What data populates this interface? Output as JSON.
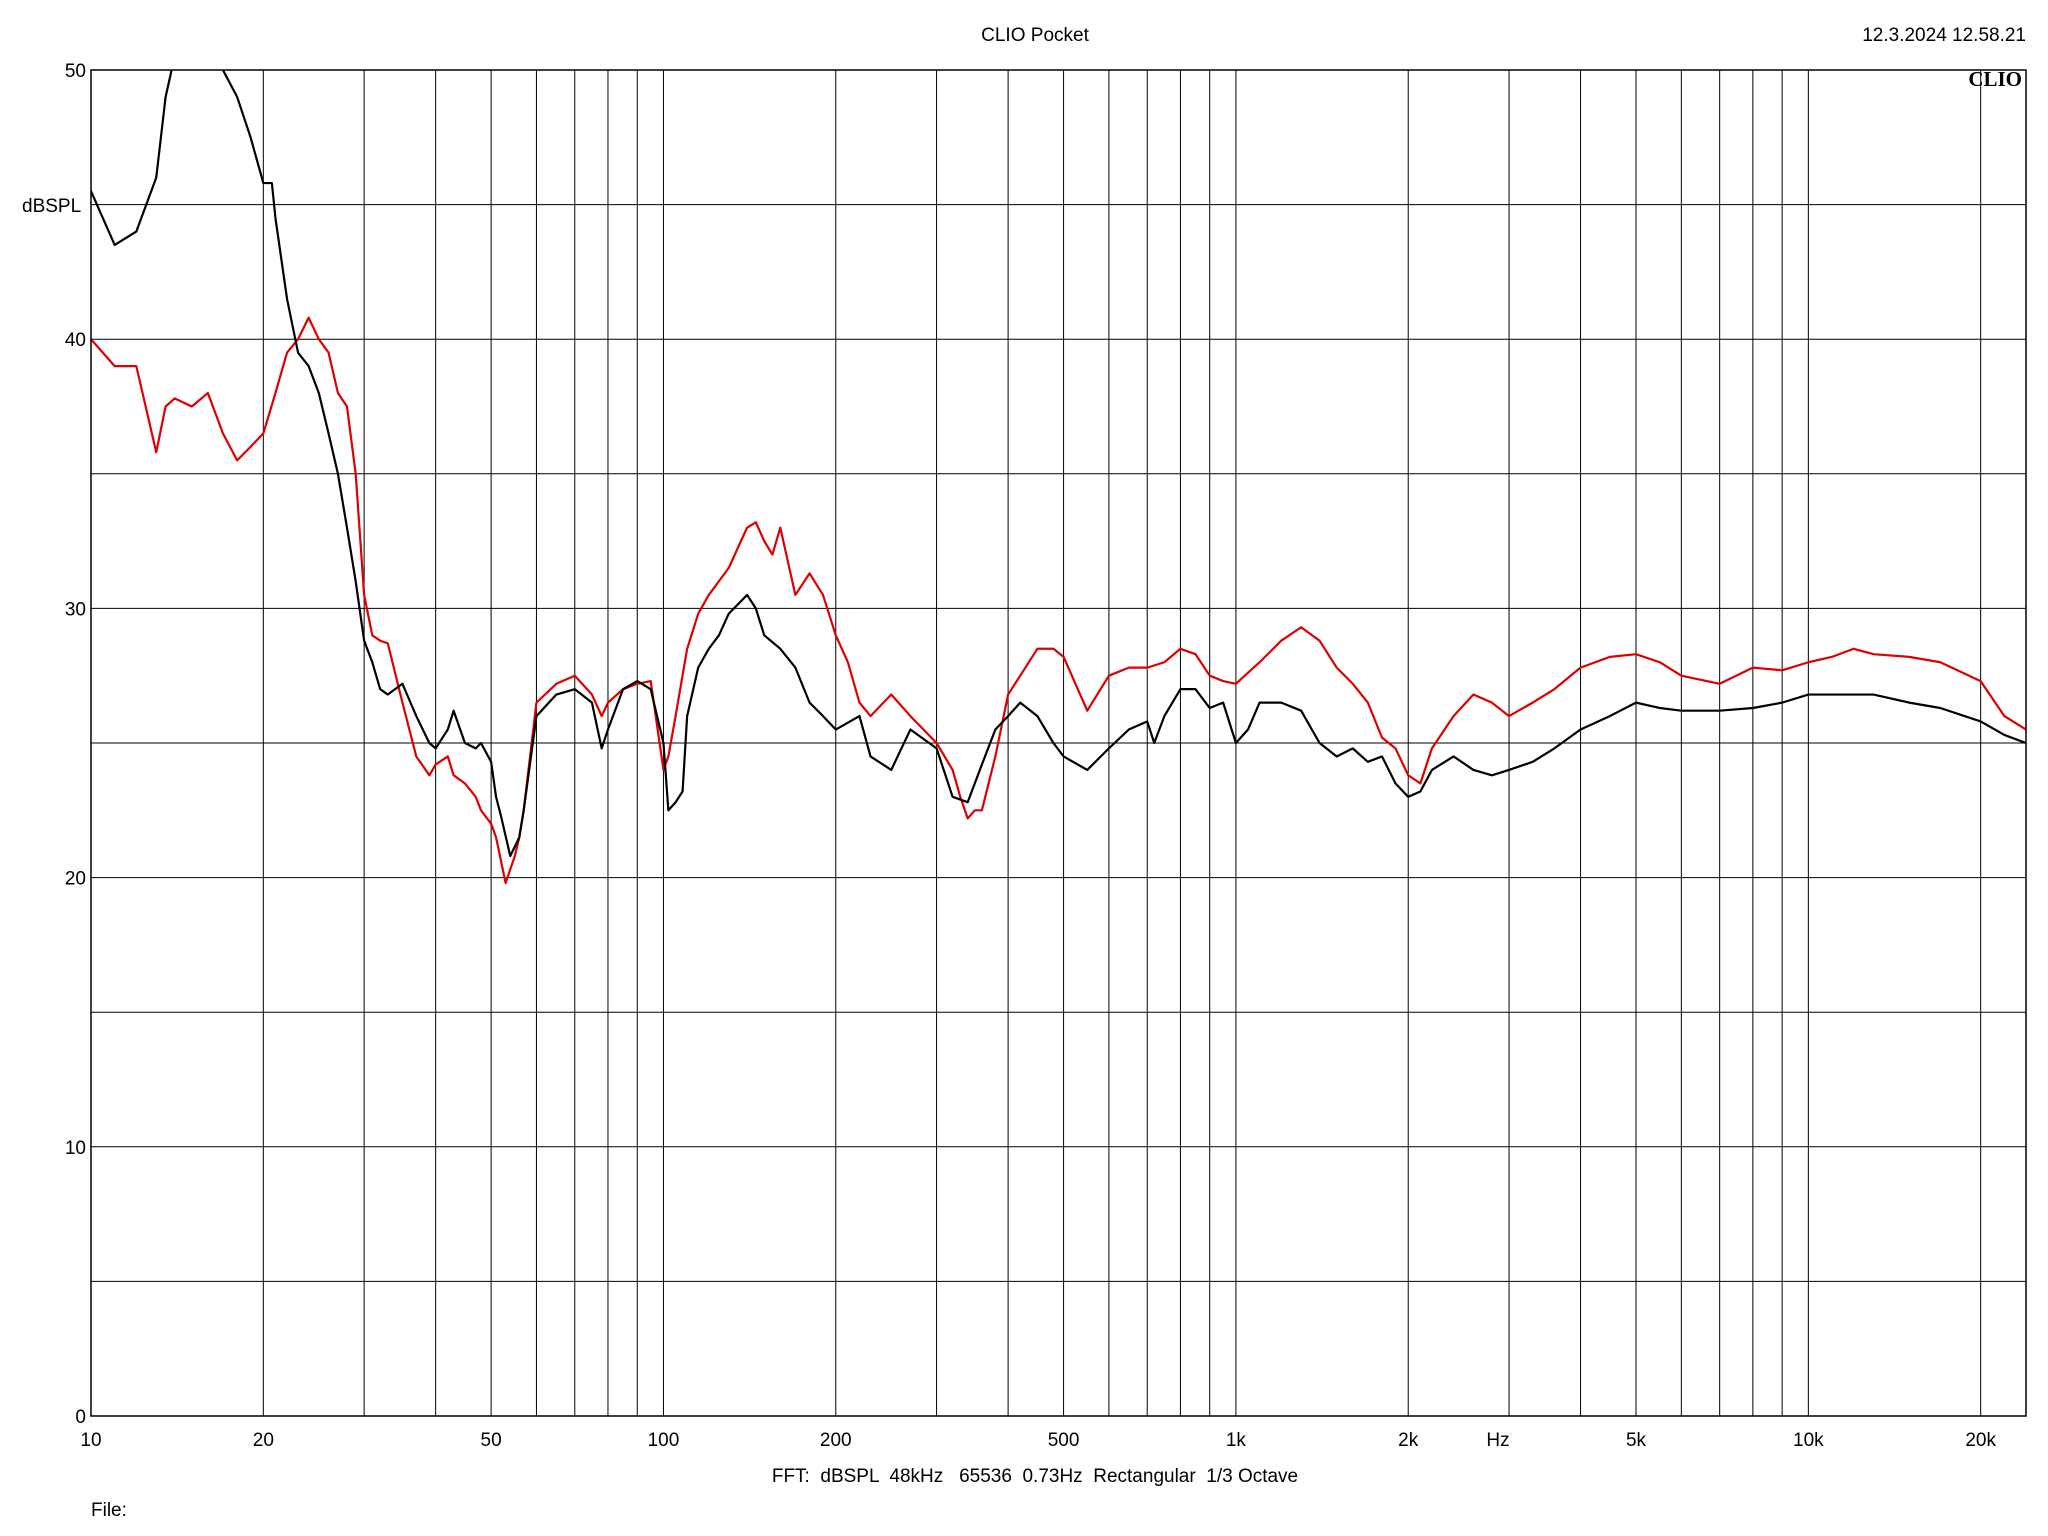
{
  "header": {
    "title": "CLIO Pocket",
    "timestamp": "12.3.2024 12.58.21",
    "logo": "CLIO"
  },
  "footer": {
    "settings": "FFT:  dBSPL  48kHz   65536  0.73Hz  Rectangular  1/3 Octave",
    "file_label": "File:"
  },
  "chart_data": {
    "type": "line",
    "title": "CLIO Pocket",
    "xlabel": "Hz",
    "ylabel": "dBSPL",
    "xscale": "log",
    "xlim": [
      10,
      24000
    ],
    "ylim": [
      0,
      50
    ],
    "grid": true,
    "legend": "none",
    "y_ticks": [
      0,
      10,
      20,
      30,
      40,
      50
    ],
    "y_tick_labels": [
      "0",
      "10",
      "20",
      "30",
      "40",
      "50"
    ],
    "x_ticks": [
      10,
      20,
      50,
      100,
      200,
      500,
      1000,
      2000,
      5000,
      10000,
      20000
    ],
    "x_tick_labels": [
      "10",
      "20",
      "50",
      "100",
      "200",
      "500",
      "1k",
      "2k",
      "5k",
      "10k",
      "20k"
    ],
    "series": [
      {
        "color": "#000000",
        "x": [
          10,
          11,
          12,
          13,
          13.5,
          14,
          15,
          16,
          17,
          18,
          19,
          20,
          20.7,
          21,
          22,
          23,
          24,
          25,
          26,
          27,
          28,
          29,
          30,
          31,
          32,
          33,
          35,
          37,
          39,
          40,
          42,
          43,
          45,
          47,
          48,
          50,
          51,
          52,
          54,
          56,
          57,
          60,
          65,
          70,
          75,
          78,
          80,
          85,
          90,
          95,
          100,
          102,
          105,
          108,
          110,
          115,
          120,
          125,
          130,
          140,
          145,
          150,
          160,
          170,
          180,
          190,
          200,
          220,
          230,
          250,
          270,
          300,
          320,
          340,
          360,
          380,
          400,
          420,
          450,
          480,
          500,
          550,
          600,
          650,
          700,
          720,
          750,
          800,
          850,
          900,
          950,
          1000,
          1050,
          1100,
          1200,
          1300,
          1400,
          1500,
          1600,
          1700,
          1800,
          1900,
          2000,
          2100,
          2200,
          2400,
          2600,
          2800,
          3000,
          3300,
          3600,
          4000,
          4500,
          5000,
          5500,
          6000,
          7000,
          8000,
          9000,
          10000,
          11000,
          12000,
          13000,
          15000,
          17000,
          20000,
          22000,
          24000
        ],
        "y": [
          45.5,
          43.5,
          44.0,
          46.0,
          49.0,
          50.5,
          51.0,
          51.0,
          50.0,
          49.0,
          47.5,
          45.8,
          45.8,
          44.5,
          41.5,
          39.5,
          39.0,
          38.0,
          36.5,
          35.0,
          33.0,
          31.0,
          28.8,
          28.0,
          27.0,
          26.8,
          27.2,
          26.0,
          25.0,
          24.8,
          25.5,
          26.2,
          25.0,
          24.8,
          25.0,
          24.3,
          23.0,
          22.3,
          20.8,
          21.5,
          22.5,
          26.0,
          26.8,
          27.0,
          26.5,
          24.8,
          25.5,
          27.0,
          27.3,
          27.0,
          25.0,
          22.5,
          22.8,
          23.2,
          26.0,
          27.8,
          28.5,
          29.0,
          29.8,
          30.5,
          30.0,
          29.0,
          28.5,
          27.8,
          26.5,
          26.0,
          25.5,
          26.0,
          24.5,
          24.0,
          25.5,
          24.8,
          23.0,
          22.8,
          24.2,
          25.5,
          26.0,
          26.5,
          26.0,
          25.0,
          24.5,
          24.0,
          24.8,
          25.5,
          25.8,
          25.0,
          26.0,
          27.0,
          27.0,
          26.3,
          26.5,
          25.0,
          25.5,
          26.5,
          26.5,
          26.2,
          25.0,
          24.5,
          24.8,
          24.3,
          24.5,
          23.5,
          23.0,
          23.2,
          24.0,
          24.5,
          24.0,
          23.8,
          24.0,
          24.3,
          24.8,
          25.5,
          26.0,
          26.5,
          26.3,
          26.2,
          26.2,
          26.3,
          26.5,
          26.8,
          26.8,
          26.8,
          26.8,
          26.5,
          26.3,
          25.8,
          25.3,
          25.0
        ]
      },
      {
        "color": "#dd0000",
        "x": [
          10,
          11,
          12,
          13,
          13.5,
          14,
          15,
          16,
          17,
          18,
          19,
          20,
          21,
          22,
          23,
          24,
          25,
          26,
          27,
          28,
          29,
          30,
          31,
          32,
          33,
          35,
          37,
          39,
          40,
          42,
          43,
          45,
          47,
          48,
          50,
          51,
          53,
          55,
          56,
          57,
          60,
          65,
          70,
          75,
          78,
          80,
          85,
          90,
          95,
          100,
          102,
          105,
          110,
          115,
          120,
          130,
          140,
          145,
          150,
          155,
          160,
          170,
          180,
          190,
          200,
          210,
          220,
          230,
          250,
          270,
          300,
          320,
          330,
          340,
          350,
          360,
          380,
          400,
          420,
          450,
          480,
          500,
          550,
          600,
          650,
          700,
          750,
          800,
          850,
          900,
          950,
          1000,
          1100,
          1200,
          1300,
          1400,
          1500,
          1600,
          1700,
          1800,
          1900,
          2000,
          2100,
          2200,
          2400,
          2600,
          2800,
          3000,
          3300,
          3600,
          4000,
          4500,
          5000,
          5500,
          6000,
          7000,
          8000,
          9000,
          10000,
          11000,
          12000,
          13000,
          15000,
          17000,
          20000,
          22000,
          24000
        ],
        "y": [
          40.0,
          39.0,
          39.0,
          35.8,
          37.5,
          37.8,
          37.5,
          38.0,
          36.5,
          35.5,
          36.0,
          36.5,
          38.0,
          39.5,
          40.0,
          40.8,
          40.0,
          39.5,
          38.0,
          37.5,
          35.0,
          30.5,
          29.0,
          28.8,
          28.7,
          26.5,
          24.5,
          23.8,
          24.2,
          24.5,
          23.8,
          23.5,
          23.0,
          22.5,
          22.0,
          21.5,
          19.8,
          20.8,
          21.5,
          22.5,
          26.5,
          27.2,
          27.5,
          26.8,
          26.0,
          26.5,
          27.0,
          27.2,
          27.3,
          24.0,
          24.5,
          26.0,
          28.5,
          29.8,
          30.5,
          31.5,
          33.0,
          33.2,
          32.5,
          32.0,
          33.0,
          30.5,
          31.3,
          30.5,
          29.0,
          28.0,
          26.5,
          26.0,
          26.8,
          26.0,
          25.0,
          24.0,
          23.0,
          22.2,
          22.5,
          22.5,
          24.5,
          26.8,
          27.5,
          28.5,
          28.5,
          28.2,
          26.2,
          27.5,
          27.8,
          27.8,
          28.0,
          28.5,
          28.3,
          27.5,
          27.3,
          27.2,
          28.0,
          28.8,
          29.3,
          28.8,
          27.8,
          27.2,
          26.5,
          25.2,
          24.8,
          23.8,
          23.5,
          24.8,
          26.0,
          26.8,
          26.5,
          26.0,
          26.5,
          27.0,
          27.8,
          28.2,
          28.3,
          28.0,
          27.5,
          27.2,
          27.8,
          27.7,
          28.0,
          28.2,
          28.5,
          28.3,
          28.2,
          28.0,
          27.3,
          26.0,
          25.5
        ]
      }
    ]
  }
}
